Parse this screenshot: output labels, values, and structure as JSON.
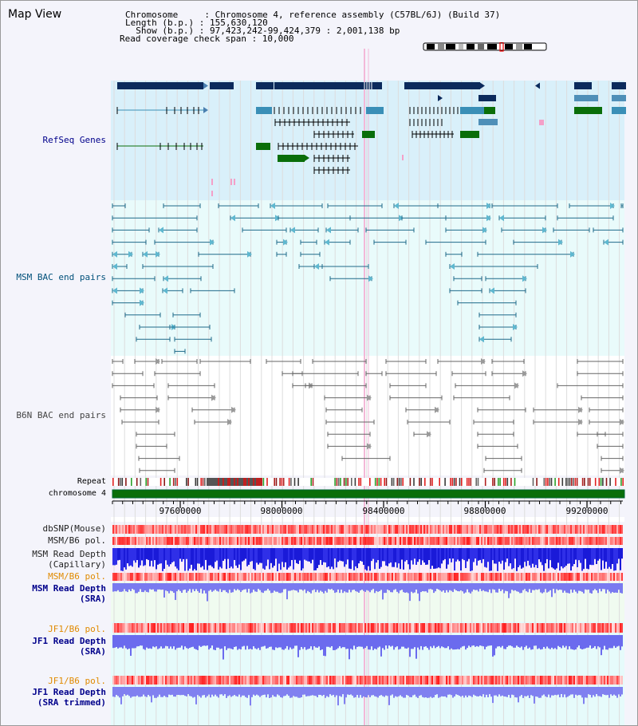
{
  "header": {
    "title": "Map View",
    "chromosome_line": "Chromosome     : Chromosome 4, reference assembly (C57BL/6J) (Build 37)",
    "length_line": "Length (b.p.) : 155,630,120",
    "show_line": "  Show (b.p.) : 97,423,242-99,424,379 : 2,001,138 bp",
    "coverage_line": "Read coverage check span : 10,000"
  },
  "tracks": {
    "refseq": "RefSeq Genes",
    "msm_bac": "MSM BAC end pairs",
    "b6n_bac": "B6N BAC end pairs",
    "repeat": "Repeat",
    "chromosome": "chromosome 4",
    "dbsnp": "dbSNP(Mouse)",
    "msm_b6_pol_1": "MSM/B6 pol.",
    "msm_read_depth_cap_1": "MSM Read Depth",
    "msm_read_depth_cap_2": "(Capillary)",
    "msm_b6_pol_2": "MSM/B6 pol.",
    "msm_read_depth_sra_1": "MSM Read Depth",
    "msm_read_depth_sra_2": "(SRA)",
    "jf1_b6_pol_1": "JF1/B6 pol.",
    "jf1_read_depth_sra_1": "JF1 Read Depth",
    "jf1_read_depth_sra_2": "(SRA)",
    "jf1_b6_pol_2": "JF1/B6 pol.",
    "jf1_read_depth_trim_1": "JF1 Read Depth",
    "jf1_read_depth_trim_2": "(SRA trimmed)"
  },
  "axis": {
    "ticks": [
      "97600000",
      "98000000",
      "98400000",
      "98800000",
      "99200000"
    ]
  },
  "colors": {
    "refseq_label": "#00008b",
    "msm_label": "#00507a",
    "b6n_label": "#444444",
    "orange_label": "#e08a00",
    "blue_label": "#00008b",
    "chromosome_bar": "#006400",
    "highlight": "#ff99cc"
  }
}
